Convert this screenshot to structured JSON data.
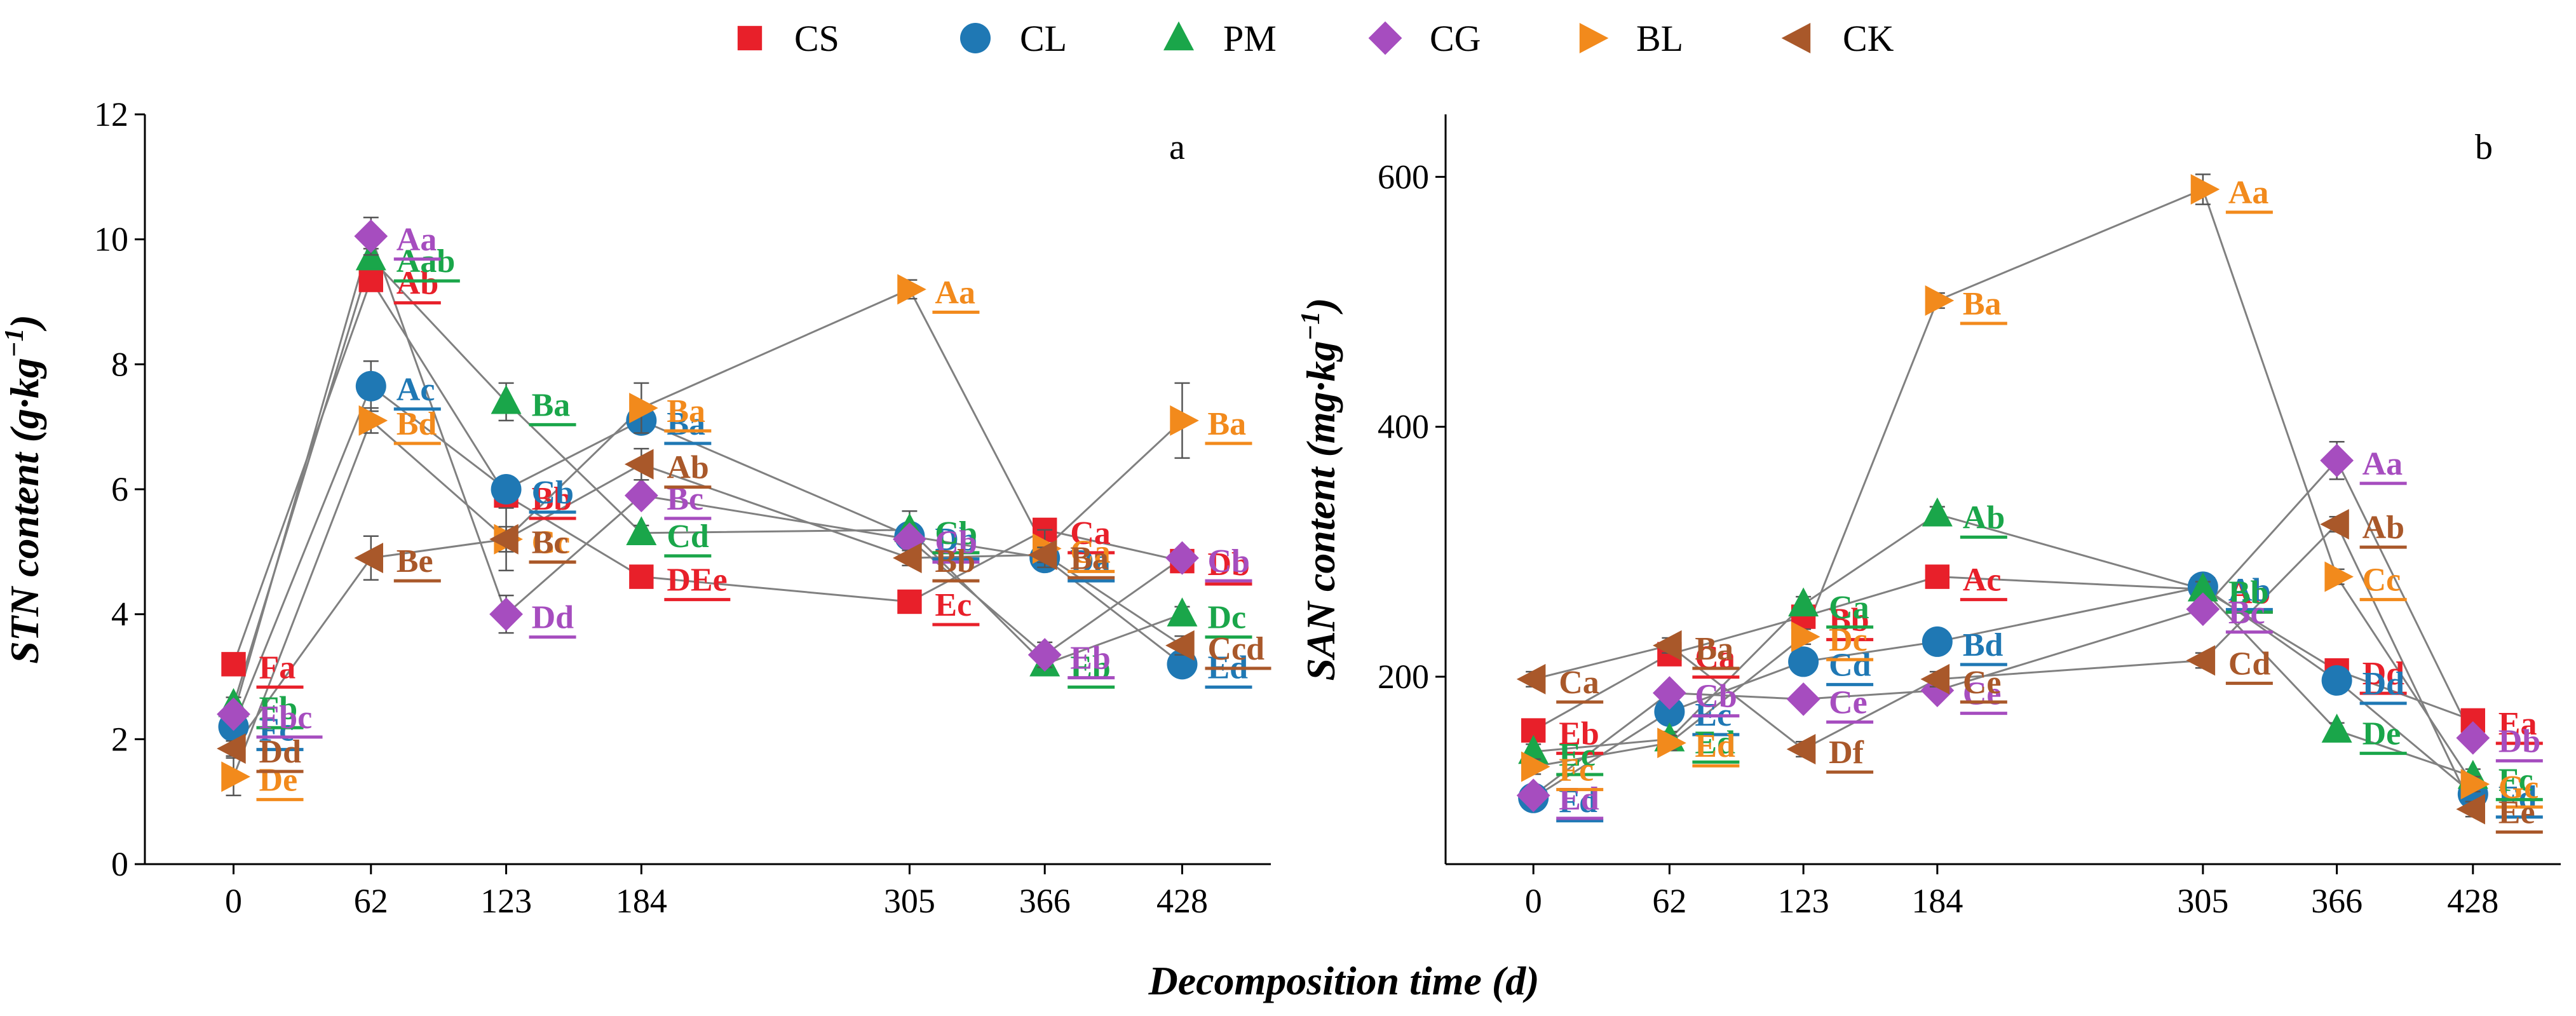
{
  "legend": {
    "entries": [
      {
        "name": "CS",
        "marker": "square",
        "color": "#e8202a"
      },
      {
        "name": "CL",
        "marker": "circle",
        "color": "#1f78b4"
      },
      {
        "name": "PM",
        "marker": "triangle-up",
        "color": "#1aa64a"
      },
      {
        "name": "CG",
        "marker": "diamond",
        "color": "#a64dbf"
      },
      {
        "name": "BL",
        "marker": "triangle-right",
        "color": "#f28a1c"
      },
      {
        "name": "CK",
        "marker": "triangle-left",
        "color": "#a9582a"
      }
    ]
  },
  "shared_xlabel": "Decomposition time (d)",
  "chart_data": [
    {
      "type": "line",
      "panel": "a",
      "ylabel": "STN content (g·kg",
      "ylabel_sup": "−1",
      "ylabel_close": ")",
      "x": [
        0,
        62,
        123,
        184,
        305,
        366,
        428
      ],
      "xticks": [
        "0",
        "62",
        "123",
        "184",
        "305",
        "366",
        "428"
      ],
      "ylim": [
        0,
        12
      ],
      "yticks": [
        0,
        2,
        4,
        6,
        8,
        10,
        12
      ],
      "series": [
        {
          "name": "CS",
          "values": [
            3.2,
            9.35,
            5.9,
            4.6,
            4.2,
            5.35,
            4.85
          ],
          "errors": [
            0.12,
            0.15,
            0.15,
            0.12,
            0.12,
            0.15,
            0.12
          ],
          "letters": [
            "Fa",
            "Ab",
            "Bb",
            "DEe",
            "Ec",
            "Ca",
            "Db"
          ]
        },
        {
          "name": "CL",
          "values": [
            2.2,
            7.65,
            6.0,
            7.1,
            5.25,
            4.9,
            3.2
          ],
          "errors": [
            0.12,
            0.4,
            0.15,
            0.2,
            0.12,
            0.15,
            0.12
          ],
          "letters": [
            "Fc",
            "Ac",
            "Cb",
            "Ba",
            "Db",
            "Da",
            "Ed"
          ]
        },
        {
          "name": "PM",
          "values": [
            2.55,
            9.7,
            7.4,
            5.3,
            5.35,
            3.2,
            4.0
          ],
          "errors": [
            0.12,
            0.15,
            0.3,
            0.12,
            0.3,
            0.12,
            0.12
          ],
          "letters": [
            "Fb",
            "Aab",
            "Ba",
            "Cd",
            "Cb",
            "Eb",
            "Dc"
          ]
        },
        {
          "name": "CG",
          "values": [
            2.4,
            10.05,
            4.0,
            5.9,
            5.2,
            3.35,
            4.9
          ],
          "errors": [
            0.12,
            0.3,
            0.3,
            0.12,
            0.12,
            0.2,
            0.12
          ],
          "letters": [
            "Fbc",
            "Aa",
            "Dd",
            "Bc",
            "Cb",
            "Eb",
            "Cb"
          ]
        },
        {
          "name": "BL",
          "values": [
            1.4,
            7.1,
            5.2,
            7.3,
            9.2,
            5.05,
            7.1
          ],
          "errors": [
            0.3,
            0.2,
            0.5,
            0.4,
            0.15,
            0.3,
            0.6
          ],
          "letters": [
            "De",
            "Bd",
            "Cc",
            "Ba",
            "Aa",
            "Ca",
            "Ba"
          ]
        },
        {
          "name": "CK",
          "values": [
            1.85,
            4.9,
            5.2,
            6.4,
            4.9,
            4.95,
            3.5
          ],
          "errors": [
            0.12,
            0.35,
            0.2,
            0.25,
            0.12,
            0.12,
            0.15
          ],
          "letters": [
            "Dd",
            "Be",
            "Bc",
            "Ab",
            "Bb",
            "Ba",
            "Ccd"
          ]
        }
      ]
    },
    {
      "type": "line",
      "panel": "b",
      "ylabel": "SAN content (mg·kg",
      "ylabel_sup": "−1",
      "ylabel_close": ")",
      "x": [
        0,
        62,
        123,
        184,
        305,
        366,
        428
      ],
      "xticks": [
        "0",
        "62",
        "123",
        "184",
        "305",
        "366",
        "428"
      ],
      "ylim": [
        50,
        650
      ],
      "yticks": [
        200,
        400,
        600
      ],
      "series": [
        {
          "name": "CS",
          "values": [
            157,
            218,
            248,
            280,
            270,
            205,
            165
          ],
          "errors": [
            6,
            6,
            6,
            6,
            6,
            6,
            6
          ],
          "letters": [
            "Eb",
            "Ca",
            "Bb",
            "Ac",
            "Ab",
            "Dd",
            "Ea"
          ]
        },
        {
          "name": "CL",
          "values": [
            103,
            172,
            212,
            228,
            272,
            197,
            106
          ],
          "errors": [
            6,
            6,
            6,
            6,
            6,
            6,
            6
          ],
          "letters": [
            "Fd",
            "Ec",
            "Cd",
            "Bd",
            "Ab",
            "Dd",
            "Fd"
          ]
        },
        {
          "name": "PM",
          "values": [
            140,
            150,
            258,
            330,
            270,
            157,
            120
          ],
          "errors": [
            6,
            6,
            6,
            6,
            6,
            6,
            6
          ],
          "letters": [
            "Ec",
            "Ed",
            "Ca",
            "Ab",
            "Bb",
            "De",
            "Fc"
          ]
        },
        {
          "name": "CG",
          "values": [
            105,
            187,
            182,
            189,
            254,
            373,
            151
          ],
          "errors": [
            6,
            6,
            6,
            6,
            6,
            15,
            6
          ],
          "letters": [
            "Ed",
            "Cb",
            "Ce",
            "Ce",
            "Bc",
            "Aa",
            "Db"
          ]
        },
        {
          "name": "BL",
          "values": [
            128,
            147,
            232,
            501,
            590,
            280,
            114
          ],
          "errors": [
            6,
            6,
            6,
            6,
            12,
            6,
            6
          ],
          "letters": [
            "Fc",
            "Ed",
            "Dc",
            "Ba",
            "Aa",
            "Cc",
            "Gc"
          ]
        },
        {
          "name": "CK",
          "values": [
            198,
            225,
            142,
            198,
            213,
            322,
            94
          ],
          "errors": [
            6,
            6,
            6,
            6,
            6,
            6,
            6
          ],
          "letters": [
            "Ca",
            "Ba",
            "Df",
            "Ce",
            "Cd",
            "Ab",
            "Ee"
          ]
        }
      ]
    }
  ]
}
